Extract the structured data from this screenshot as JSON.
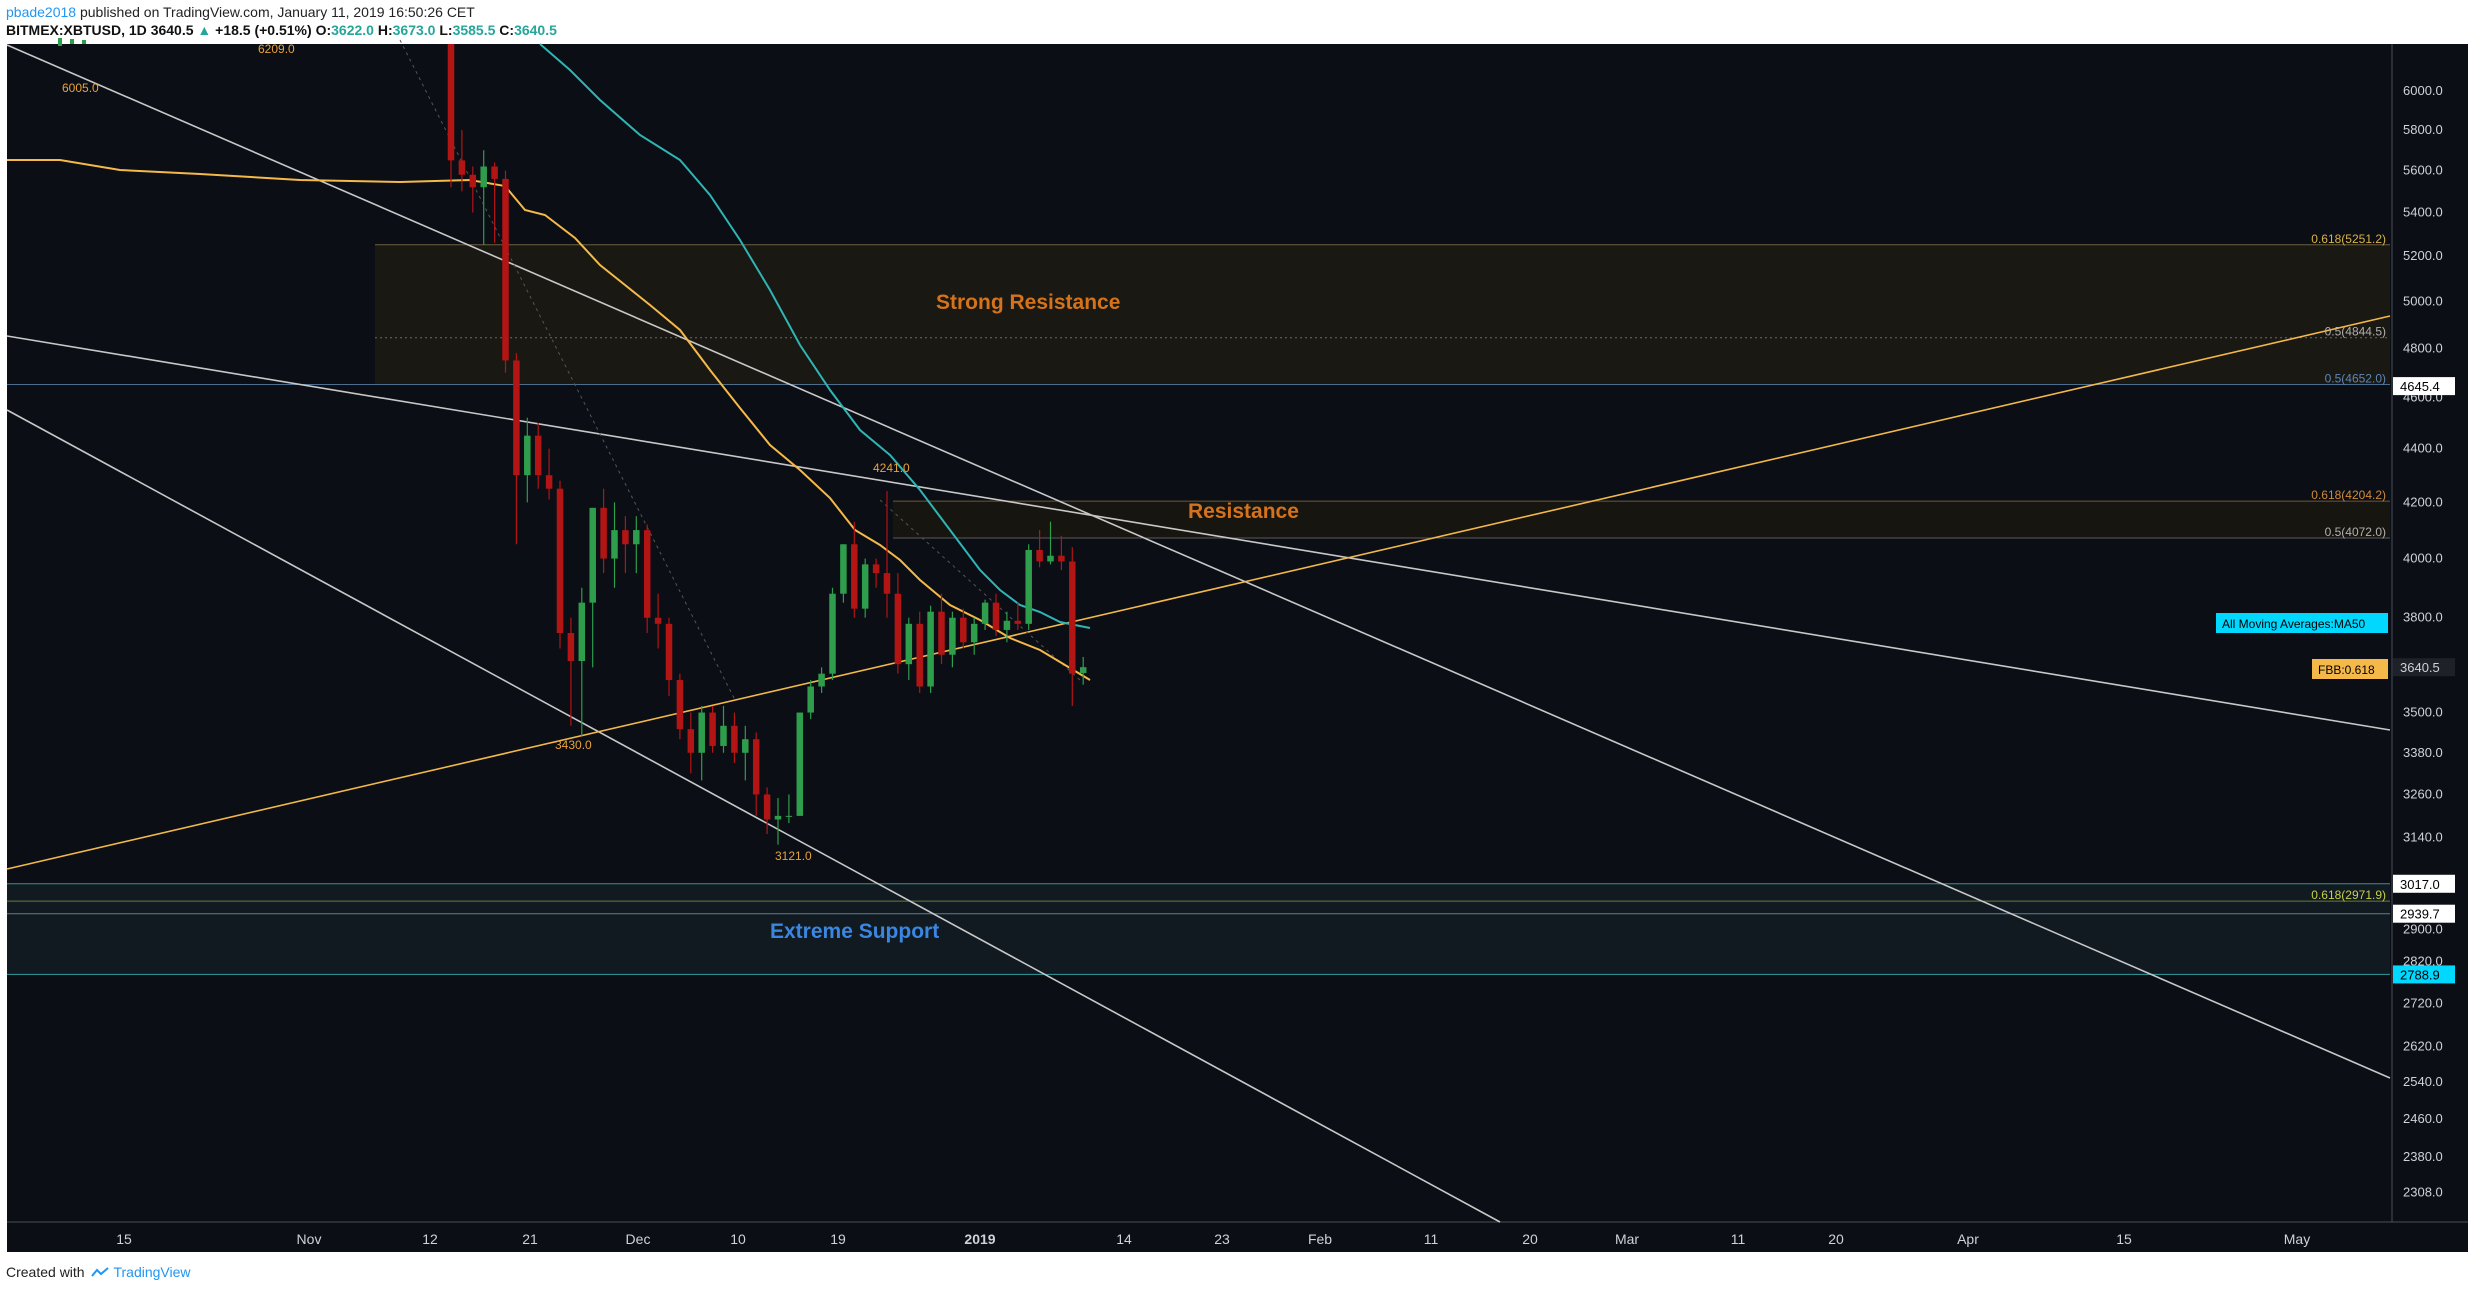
{
  "header": {
    "author": "pbade2018",
    "published_text": "published on TradingView.com, January 11, 2019 16:50:26 CET",
    "symbol": "BITMEX:XBTUSD, 1D",
    "last": "3640.5",
    "change": "+18.5 (+0.51%)",
    "open_label": "O:",
    "open": "3622.0",
    "high_label": "H:",
    "high": "3673.0",
    "low_label": "L:",
    "low": "3585.5",
    "close_label": "C:",
    "close": "3640.5"
  },
  "footer": {
    "created_with": "Created with",
    "brand": "TradingView"
  },
  "colors": {
    "background": "#0b0e14",
    "up": "#2e9e4c",
    "down": "#b31414",
    "ma_orange": "#f5b94a",
    "ma_cyan": "#2fb5b5",
    "trendline": "#c8c8c8",
    "gold_line": "#f2b84b",
    "resistance_zone": "#1a1812",
    "support_zone": "#101a20"
  },
  "chart_data": {
    "type": "candlestick",
    "y_axis": {
      "ticks": [
        "6000.0",
        "5800.0",
        "5600.0",
        "5400.0",
        "5200.0",
        "5000.0",
        "4800.0",
        "4600.0",
        "4400.0",
        "4200.0",
        "4000.0",
        "3800.0",
        "3640.0",
        "3500.0",
        "3380.0",
        "3260.0",
        "3140.0",
        "3020.0",
        "2900.0",
        "2820.0",
        "2720.0",
        "2620.0",
        "2540.0",
        "2460.0",
        "2380.0",
        "2308.0"
      ],
      "scale": "log",
      "range": [
        2250,
        6250
      ]
    },
    "x_axis": {
      "ticks": [
        "15",
        "Nov",
        "12",
        "21",
        "Dec",
        "10",
        "19",
        "2019",
        "14",
        "23",
        "Feb",
        "11",
        "20",
        "Mar",
        "11",
        "20",
        "Apr",
        "15",
        "May"
      ],
      "bold_tick": "2019"
    },
    "price_tags": [
      "4645.4",
      "3640.5",
      "3017.0",
      "2939.7",
      "2788.9"
    ],
    "indicator_tags": [
      "All Moving Averages:MA50",
      "FBB:0.618"
    ],
    "fib_labels": [
      "0.618(5251.2)",
      "0.5(4844.5)",
      "0.5(4652.0)",
      "0.618(4204.2)",
      "0.5(4072.0)",
      "0.618(2971.9)"
    ],
    "zone_labels": [
      "Strong Resistance",
      "Resistance",
      "Extreme Support"
    ],
    "price_labels": [
      "6005.0",
      "6209.0",
      "4241.0",
      "3430.0",
      "3121.0"
    ],
    "candles": [
      {
        "o": 6250,
        "h": 6400,
        "l": 5520,
        "c": 5650
      },
      {
        "o": 5650,
        "h": 5800,
        "l": 5500,
        "c": 5580
      },
      {
        "o": 5580,
        "h": 5620,
        "l": 5400,
        "c": 5520
      },
      {
        "o": 5520,
        "h": 5700,
        "l": 5250,
        "c": 5620
      },
      {
        "o": 5620,
        "h": 5640,
        "l": 5260,
        "c": 5560
      },
      {
        "o": 5560,
        "h": 5600,
        "l": 4700,
        "c": 4750
      },
      {
        "o": 4750,
        "h": 4780,
        "l": 4050,
        "c": 4300
      },
      {
        "o": 4300,
        "h": 4520,
        "l": 4200,
        "c": 4450
      },
      {
        "o": 4450,
        "h": 4500,
        "l": 4250,
        "c": 4300
      },
      {
        "o": 4300,
        "h": 4400,
        "l": 4210,
        "c": 4250
      },
      {
        "o": 4250,
        "h": 4280,
        "l": 3700,
        "c": 3750
      },
      {
        "o": 3750,
        "h": 3800,
        "l": 3460,
        "c": 3660
      },
      {
        "o": 3660,
        "h": 3900,
        "l": 3430,
        "c": 3850
      },
      {
        "o": 3850,
        "h": 4180,
        "l": 3640,
        "c": 4180
      },
      {
        "o": 4180,
        "h": 4250,
        "l": 3950,
        "c": 4000
      },
      {
        "o": 4000,
        "h": 4200,
        "l": 3900,
        "c": 4100
      },
      {
        "o": 4100,
        "h": 4150,
        "l": 3950,
        "c": 4050
      },
      {
        "o": 4050,
        "h": 4150,
        "l": 3950,
        "c": 4100
      },
      {
        "o": 4100,
        "h": 4120,
        "l": 3750,
        "c": 3800
      },
      {
        "o": 3800,
        "h": 3880,
        "l": 3700,
        "c": 3780
      },
      {
        "o": 3780,
        "h": 3800,
        "l": 3550,
        "c": 3600
      },
      {
        "o": 3600,
        "h": 3620,
        "l": 3420,
        "c": 3450
      },
      {
        "o": 3450,
        "h": 3500,
        "l": 3320,
        "c": 3380
      },
      {
        "o": 3380,
        "h": 3520,
        "l": 3300,
        "c": 3500
      },
      {
        "o": 3500,
        "h": 3520,
        "l": 3380,
        "c": 3400
      },
      {
        "o": 3400,
        "h": 3520,
        "l": 3380,
        "c": 3460
      },
      {
        "o": 3460,
        "h": 3500,
        "l": 3350,
        "c": 3380
      },
      {
        "o": 3380,
        "h": 3460,
        "l": 3300,
        "c": 3420
      },
      {
        "o": 3420,
        "h": 3440,
        "l": 3200,
        "c": 3260
      },
      {
        "o": 3260,
        "h": 3280,
        "l": 3150,
        "c": 3190
      },
      {
        "o": 3190,
        "h": 3250,
        "l": 3121,
        "c": 3200
      },
      {
        "o": 3200,
        "h": 3260,
        "l": 3180,
        "c": 3200
      },
      {
        "o": 3200,
        "h": 3500,
        "l": 3200,
        "c": 3500
      },
      {
        "o": 3500,
        "h": 3600,
        "l": 3480,
        "c": 3580
      },
      {
        "o": 3580,
        "h": 3640,
        "l": 3560,
        "c": 3620
      },
      {
        "o": 3620,
        "h": 3900,
        "l": 3600,
        "c": 3880
      },
      {
        "o": 3880,
        "h": 4050,
        "l": 3850,
        "c": 4050
      },
      {
        "o": 4050,
        "h": 4130,
        "l": 3800,
        "c": 3830
      },
      {
        "o": 3830,
        "h": 4000,
        "l": 3800,
        "c": 3980
      },
      {
        "o": 3980,
        "h": 4000,
        "l": 3900,
        "c": 3950
      },
      {
        "o": 3950,
        "h": 4241,
        "l": 3800,
        "c": 3880
      },
      {
        "o": 3880,
        "h": 3950,
        "l": 3620,
        "c": 3650
      },
      {
        "o": 3650,
        "h": 3800,
        "l": 3600,
        "c": 3780
      },
      {
        "o": 3780,
        "h": 3820,
        "l": 3560,
        "c": 3580
      },
      {
        "o": 3580,
        "h": 3840,
        "l": 3560,
        "c": 3820
      },
      {
        "o": 3820,
        "h": 3880,
        "l": 3650,
        "c": 3680
      },
      {
        "o": 3680,
        "h": 3820,
        "l": 3640,
        "c": 3800
      },
      {
        "o": 3800,
        "h": 3830,
        "l": 3700,
        "c": 3720
      },
      {
        "o": 3720,
        "h": 3800,
        "l": 3680,
        "c": 3780
      },
      {
        "o": 3780,
        "h": 3860,
        "l": 3760,
        "c": 3850
      },
      {
        "o": 3850,
        "h": 3880,
        "l": 3740,
        "c": 3760
      },
      {
        "o": 3760,
        "h": 3820,
        "l": 3720,
        "c": 3790
      },
      {
        "o": 3790,
        "h": 3850,
        "l": 3760,
        "c": 3780
      },
      {
        "o": 3780,
        "h": 4050,
        "l": 3760,
        "c": 4030
      },
      {
        "o": 4030,
        "h": 4100,
        "l": 3970,
        "c": 3990
      },
      {
        "o": 3990,
        "h": 4130,
        "l": 3980,
        "c": 4010
      },
      {
        "o": 4010,
        "h": 4080,
        "l": 3960,
        "c": 3990
      },
      {
        "o": 3990,
        "h": 4040,
        "l": 3520,
        "c": 3620
      },
      {
        "o": 3622,
        "h": 3673,
        "l": 3585.5,
        "c": 3640.5
      }
    ]
  }
}
